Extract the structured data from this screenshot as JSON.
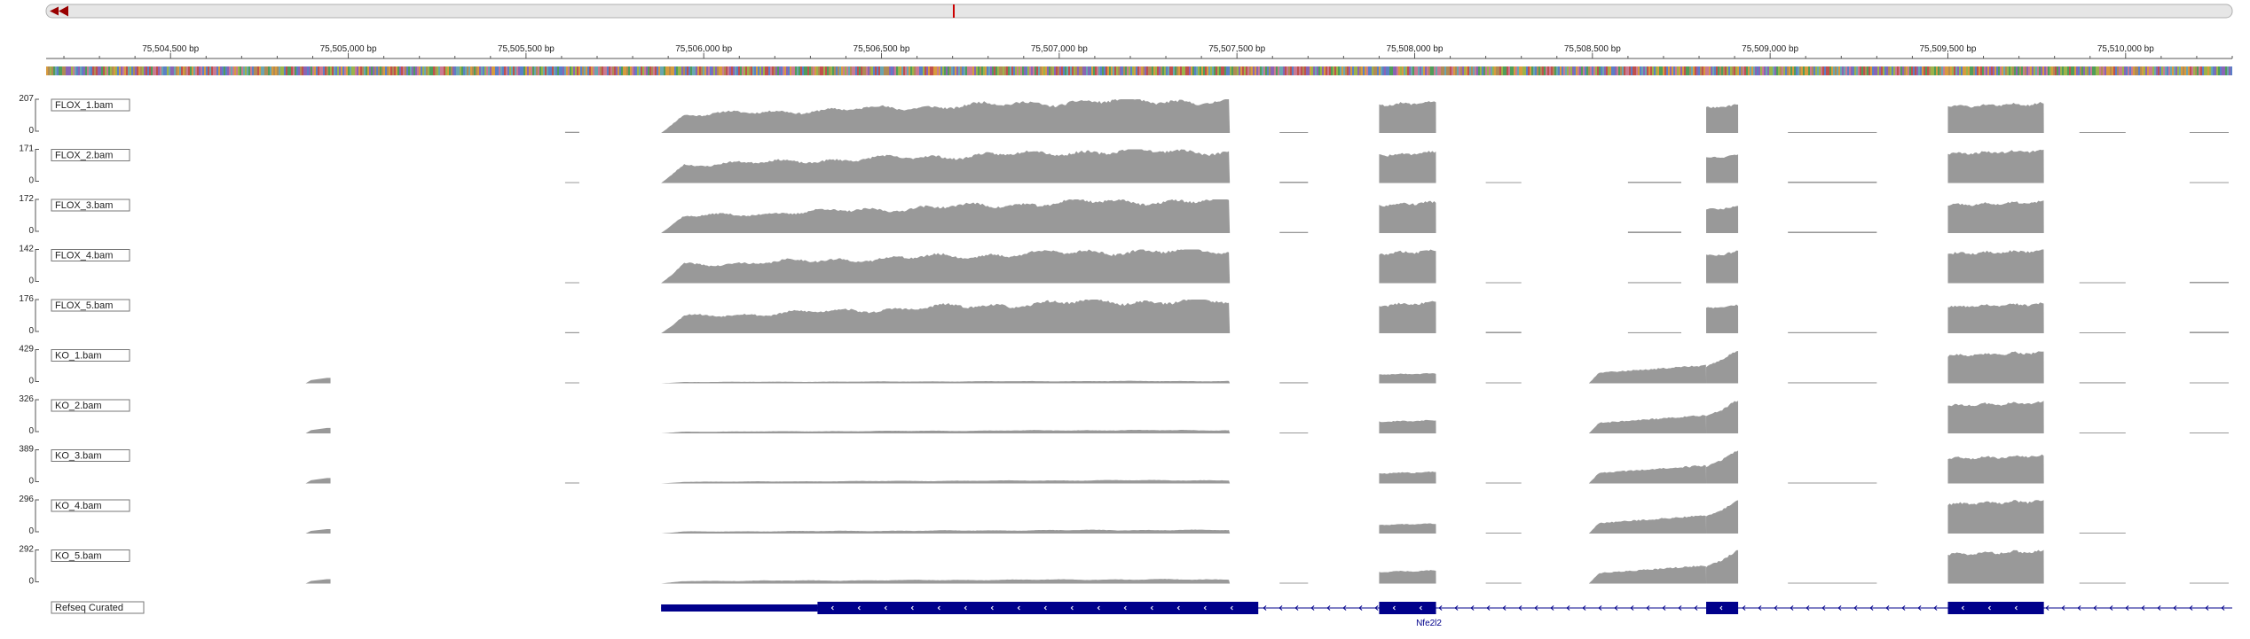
{
  "navigator": {
    "scroll_left_icon": "double-left-arrow-icon"
  },
  "ruler": {
    "start_bp": 75504150,
    "end_bp": 75510300,
    "ticks": [
      {
        "bp": 75504500,
        "label": "75,504,500 bp"
      },
      {
        "bp": 75505000,
        "label": "75,505,000 bp"
      },
      {
        "bp": 75505500,
        "label": "75,505,500 bp"
      },
      {
        "bp": 75506000,
        "label": "75,506,000 bp"
      },
      {
        "bp": 75506500,
        "label": "75,506,500 bp"
      },
      {
        "bp": 75507000,
        "label": "75,507,000 bp"
      },
      {
        "bp": 75507500,
        "label": "75,507,500 bp"
      },
      {
        "bp": 75508000,
        "label": "75,508,000 bp"
      },
      {
        "bp": 75508500,
        "label": "75,508,500 bp"
      },
      {
        "bp": 75509000,
        "label": "75,509,000 bp"
      },
      {
        "bp": 75509500,
        "label": "75,509,500 bp"
      },
      {
        "bp": 75510000,
        "label": "75,510,000 bp"
      }
    ]
  },
  "colors": {
    "coverage": "#999999",
    "gene": "#00008b",
    "navigator_marker": "#cc0000",
    "navigator_arrow": "#990000",
    "label_border": "#777777",
    "text": "#222222"
  },
  "coverage_shapes": {
    "exon": [
      [
        75507900,
        75508060
      ],
      [
        75508820,
        75508910
      ],
      [
        75509500,
        75509770
      ]
    ],
    "exon_base": [
      0.0,
      0.7,
      1.0
    ],
    "mid_body": [
      75505800,
      75507480
    ],
    "upstream_peak": [
      75504880,
      75504950
    ],
    "noise": [
      [
        75505610,
        75505650
      ],
      [
        75507620,
        75507700
      ],
      [
        75508200,
        75508300
      ],
      [
        75508600,
        75508750
      ],
      [
        75509050,
        75509300
      ],
      [
        75509870,
        75510000
      ],
      [
        75510180,
        75510290
      ]
    ]
  },
  "tracks": [
    {
      "name": "FLOX_1.bam",
      "max": "207",
      "min": "0",
      "body_start": 75505880,
      "body_level": 0.55,
      "mid_level": 1.0,
      "exon_levels": [
        0.95,
        0.85,
        0.9
      ],
      "upstream": 0.0,
      "noise": 0.03,
      "seed": 11
    },
    {
      "name": "FLOX_2.bam",
      "max": "171",
      "min": "0",
      "body_start": 75505880,
      "body_level": 0.55,
      "mid_level": 1.0,
      "exon_levels": [
        0.95,
        0.85,
        1.0
      ],
      "upstream": 0.0,
      "noise": 0.03,
      "seed": 23
    },
    {
      "name": "FLOX_3.bam",
      "max": "172",
      "min": "0",
      "body_start": 75505880,
      "body_level": 0.5,
      "mid_level": 1.0,
      "exon_levels": [
        0.95,
        0.8,
        0.95
      ],
      "upstream": 0.0,
      "noise": 0.03,
      "seed": 37
    },
    {
      "name": "FLOX_4.bam",
      "max": "142",
      "min": "0",
      "body_start": 75505880,
      "body_level": 0.55,
      "mid_level": 1.0,
      "exon_levels": [
        1.0,
        0.95,
        1.0
      ],
      "upstream": 0.0,
      "noise": 0.03,
      "seed": 41
    },
    {
      "name": "FLOX_5.bam",
      "max": "176",
      "min": "0",
      "body_start": 75505880,
      "body_level": 0.5,
      "mid_level": 1.0,
      "exon_levels": [
        0.95,
        0.85,
        0.9
      ],
      "upstream": 0.0,
      "noise": 0.03,
      "seed": 53
    },
    {
      "name": "KO_1.bam",
      "max": "429",
      "min": "0",
      "body_start": 75505880,
      "body_level": 0.04,
      "mid_level": 0.07,
      "exon_levels": [
        0.3,
        1.0,
        0.95
      ],
      "upstream": 0.16,
      "noise": 0.02,
      "seed": 61
    },
    {
      "name": "KO_2.bam",
      "max": "326",
      "min": "0",
      "body_start": 75505880,
      "body_level": 0.05,
      "mid_level": 0.1,
      "exon_levels": [
        0.4,
        1.0,
        0.95
      ],
      "upstream": 0.16,
      "noise": 0.02,
      "seed": 73
    },
    {
      "name": "KO_3.bam",
      "max": "389",
      "min": "0",
      "body_start": 75505880,
      "body_level": 0.05,
      "mid_level": 0.1,
      "exon_levels": [
        0.35,
        1.0,
        0.85
      ],
      "upstream": 0.16,
      "noise": 0.02,
      "seed": 83
    },
    {
      "name": "KO_4.bam",
      "max": "296",
      "min": "0",
      "body_start": 75505880,
      "body_level": 0.06,
      "mid_level": 0.11,
      "exon_levels": [
        0.3,
        1.0,
        1.0
      ],
      "upstream": 0.13,
      "noise": 0.02,
      "seed": 97
    },
    {
      "name": "KO_5.bam",
      "max": "292",
      "min": "0",
      "body_start": 75505880,
      "body_level": 0.08,
      "mid_level": 0.13,
      "exon_levels": [
        0.4,
        1.0,
        1.0
      ],
      "upstream": 0.13,
      "noise": 0.02,
      "seed": 101
    }
  ],
  "gene_track": {
    "name": "Refseq Curated",
    "gene_label": "Nfe2l2",
    "line": [
      75505880,
      75510300
    ],
    "utr": [
      75505880,
      75506320
    ],
    "exons": [
      [
        75506320,
        75507560
      ],
      [
        75507900,
        75508060
      ],
      [
        75508820,
        75508910
      ],
      [
        75509500,
        75509770
      ]
    ]
  }
}
